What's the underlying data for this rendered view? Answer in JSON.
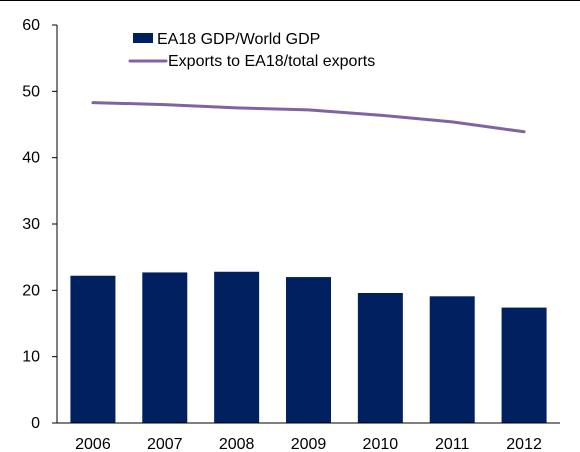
{
  "chart_data": {
    "type": "bar+line",
    "title": "",
    "xlabel": "",
    "ylabel": "",
    "categories": [
      "2006",
      "2007",
      "2008",
      "2009",
      "2010",
      "2011",
      "2012"
    ],
    "ylim": [
      0,
      60
    ],
    "yticks": [
      0,
      10,
      20,
      30,
      40,
      50,
      60
    ],
    "grid": false,
    "legend_position": "top-center",
    "series": [
      {
        "name": "EA18 GDP/World GDP",
        "type": "bar",
        "color": "#002060",
        "values": [
          22.2,
          22.7,
          22.8,
          22.0,
          19.6,
          19.1,
          17.4
        ]
      },
      {
        "name": "Exports to EA18/total exports",
        "type": "line",
        "color": "#8064A2",
        "values": [
          48.3,
          48.0,
          47.5,
          47.2,
          46.4,
          45.4,
          43.9
        ]
      }
    ]
  }
}
